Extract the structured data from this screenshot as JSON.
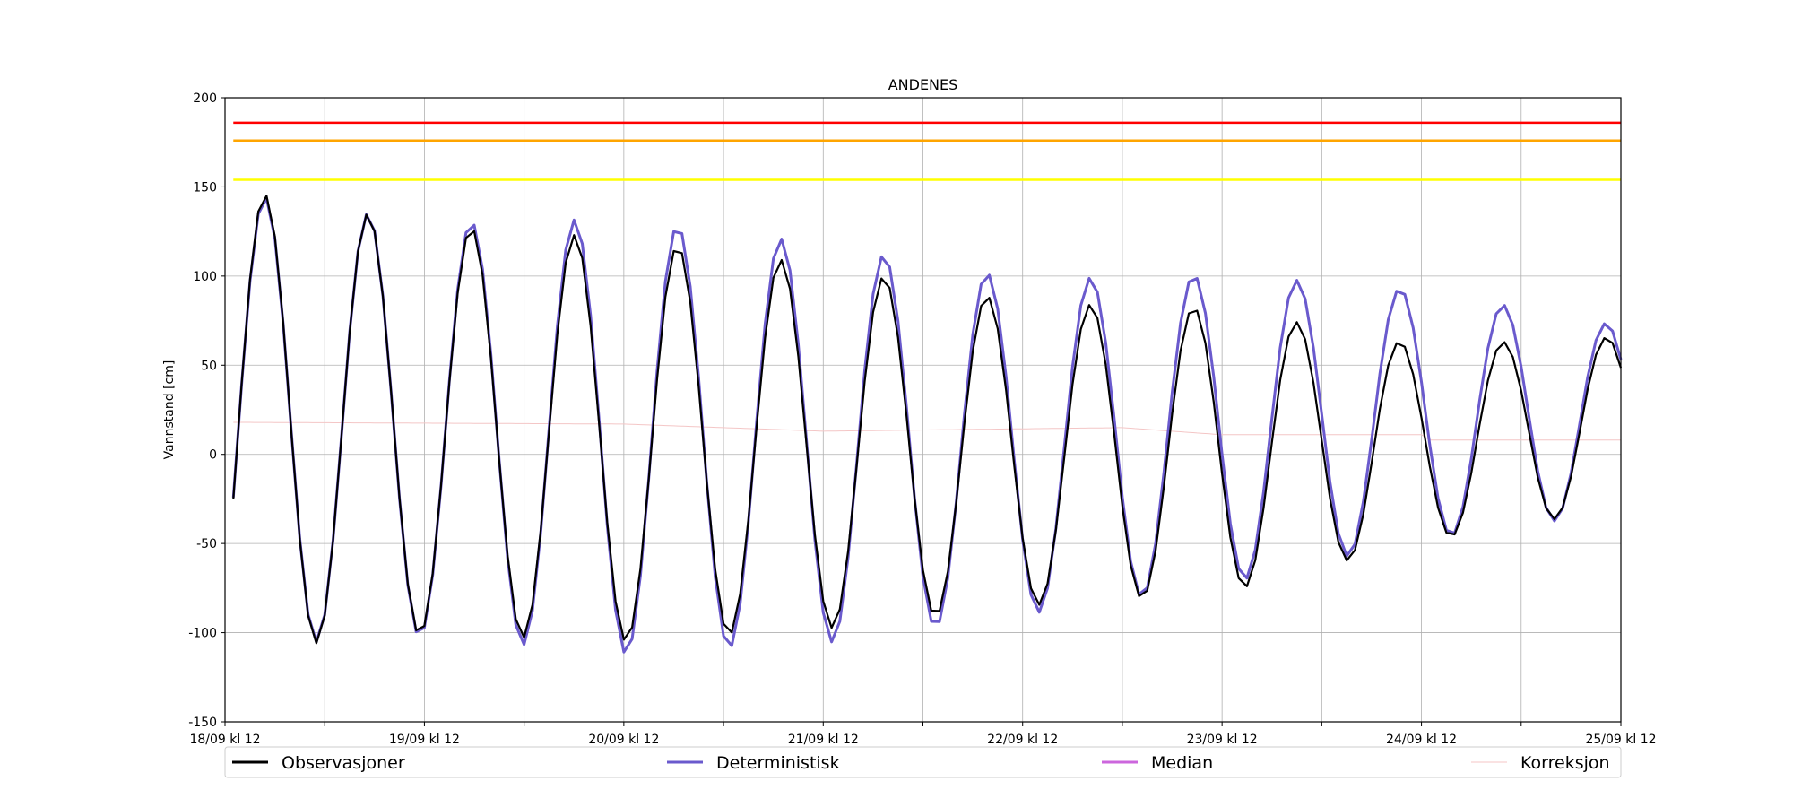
{
  "chart_data": {
    "type": "line",
    "title": "ANDENES",
    "ylabel": "Vannstand [cm]",
    "xlabel": "",
    "ylim": [
      -150,
      200
    ],
    "yticks": [
      -150,
      -100,
      -50,
      0,
      50,
      100,
      150,
      200
    ],
    "xlim_hours": [
      0,
      168
    ],
    "xtick_labels": [
      "18/09 kl 12",
      "19/09 kl 12",
      "20/09 kl 12",
      "21/09 kl 12",
      "22/09 kl 12",
      "23/09 kl 12",
      "24/09 kl 12",
      "25/09 kl 12"
    ],
    "grid": true,
    "legend_placement": "below",
    "thresholds": [
      {
        "value": 186,
        "color": "#ff0000"
      },
      {
        "value": 176,
        "color": "#ffa500"
      },
      {
        "value": 154,
        "color": "#ffff00"
      }
    ],
    "tide": {
      "period_hours": 12.42,
      "phase_hours": 4.8
    },
    "series": [
      {
        "name": "Observasjoner",
        "color": "#000000",
        "amps": [
          [
            0,
            130
          ],
          [
            24,
            115
          ],
          [
            48,
            113
          ],
          [
            72,
            102
          ],
          [
            96,
            85
          ],
          [
            120,
            80
          ],
          [
            144,
            55
          ],
          [
            168,
            48
          ]
        ],
        "offs": [
          [
            0,
            20
          ],
          [
            24,
            14
          ],
          [
            48,
            8
          ],
          [
            72,
            4
          ],
          [
            96,
            0
          ],
          [
            120,
            2
          ],
          [
            144,
            6
          ],
          [
            168,
            18
          ]
        ]
      },
      {
        "name": "Deterministisk",
        "color": "#6a5acd",
        "amps": [
          [
            0,
            128
          ],
          [
            24,
            116
          ],
          [
            48,
            122
          ],
          [
            72,
            112
          ],
          [
            96,
            94
          ],
          [
            120,
            87
          ],
          [
            144,
            70
          ],
          [
            168,
            52
          ]
        ],
        "offs": [
          [
            0,
            20
          ],
          [
            24,
            14
          ],
          [
            48,
            10
          ],
          [
            72,
            6
          ],
          [
            96,
            4
          ],
          [
            120,
            14
          ],
          [
            144,
            22
          ],
          [
            168,
            20
          ]
        ]
      },
      {
        "name": "Median",
        "color": "#cc66dd",
        "amps": [
          [
            0,
            128
          ],
          [
            24,
            116
          ],
          [
            48,
            122
          ],
          [
            72,
            112
          ],
          [
            96,
            94
          ],
          [
            120,
            87
          ],
          [
            144,
            70
          ],
          [
            168,
            52
          ]
        ],
        "offs": [
          [
            0,
            20
          ],
          [
            24,
            14
          ],
          [
            48,
            10
          ],
          [
            72,
            6
          ],
          [
            96,
            4
          ],
          [
            120,
            14
          ],
          [
            144,
            22
          ],
          [
            168,
            20
          ]
        ]
      },
      {
        "name": "Korreksjon",
        "color": "#f4c6c6",
        "steps": [
          [
            0,
            18
          ],
          [
            48,
            17
          ],
          [
            72,
            13
          ],
          [
            108,
            15
          ],
          [
            120,
            11
          ],
          [
            144,
            11
          ],
          [
            145,
            8
          ],
          [
            168,
            8
          ]
        ]
      }
    ]
  }
}
